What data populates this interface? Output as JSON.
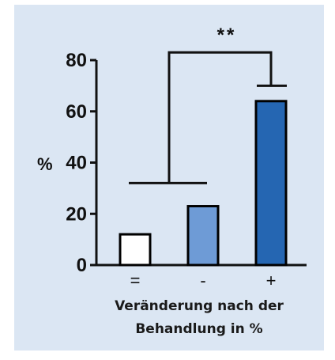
{
  "chart_data": {
    "type": "bar",
    "categories": [
      "=",
      "-",
      "+"
    ],
    "values": [
      12,
      23,
      64
    ],
    "bar_colors": [
      "#ffffff",
      "#6e9bd6",
      "#2566b2"
    ],
    "ylabel": "%",
    "xlabel_lines": [
      "Veränderung nach der",
      "Behandlung in %"
    ],
    "ylim": [
      0,
      80
    ],
    "yticks": [
      0,
      20,
      40,
      60,
      80
    ],
    "grid": false,
    "annotation": {
      "text": "**",
      "compares": [
        [
          "=",
          "-"
        ],
        [
          "+"
        ]
      ]
    }
  }
}
